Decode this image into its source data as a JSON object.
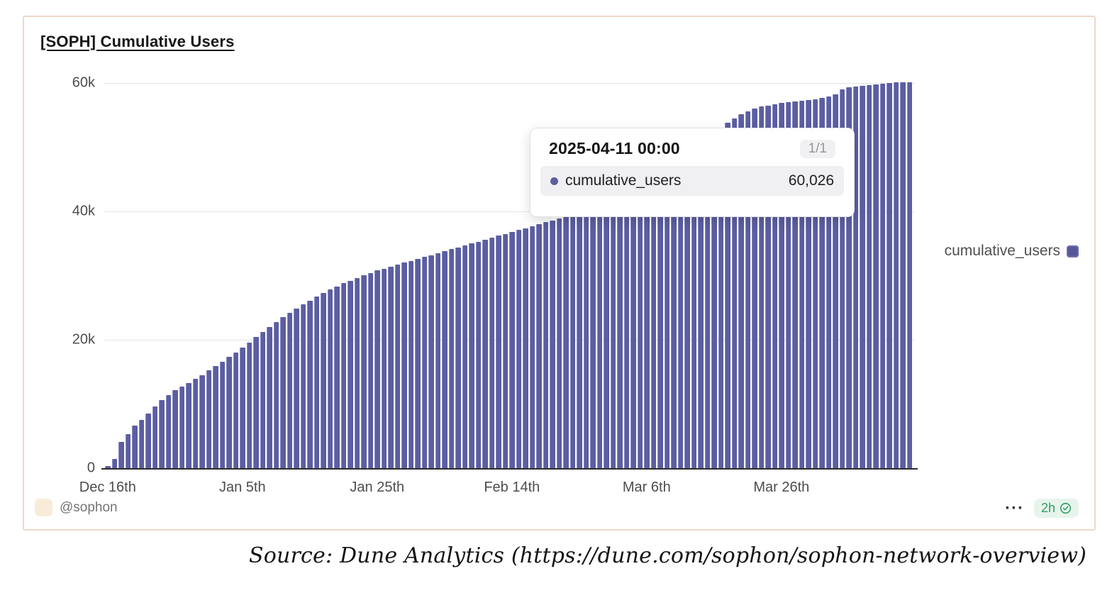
{
  "chart": {
    "title": "[SOPH] Cumulative Users",
    "legend": {
      "label": "cumulative_users"
    },
    "tooltip": {
      "date": "2025-04-11 00:00",
      "badge": "1/1",
      "series_label": "cumulative_users",
      "value": "60,026"
    },
    "footer": {
      "author": "@sophon",
      "more_label": "···",
      "updated": "2h"
    },
    "colors": {
      "bar": "#5c5ea2",
      "grid": "#e5e5e6",
      "axis_line": "#2e2e2e",
      "card_border": "#eed7c9",
      "freshness_green": "#2f9e63",
      "avatar_beige": "#f8ecd9"
    }
  },
  "chart_data": {
    "type": "bar",
    "title": "[SOPH] Cumulative Users",
    "series_name": "cumulative_users",
    "start_date": "2024-12-16",
    "end_date": "2025-04-14",
    "ylim": [
      0,
      60000
    ],
    "grid": "horizontal",
    "legend_position": "right",
    "y_ticks": [
      {
        "label": "60k",
        "value": 60000
      },
      {
        "label": "40k",
        "value": 40000
      },
      {
        "label": "20k",
        "value": 20000
      },
      {
        "label": "0",
        "value": 0
      }
    ],
    "x_ticks": [
      {
        "label": "Dec 16th",
        "day_index": 0
      },
      {
        "label": "Jan 5th",
        "day_index": 20
      },
      {
        "label": "Jan 25th",
        "day_index": 40
      },
      {
        "label": "Feb 14th",
        "day_index": 60
      },
      {
        "label": "Mar 6th",
        "day_index": 80
      },
      {
        "label": "Mar 26th",
        "day_index": 100
      }
    ],
    "highlighted_point": {
      "date": "2025-04-11 00:00",
      "value": 60026
    },
    "values": [
      300,
      1400,
      4100,
      5300,
      6600,
      7500,
      8500,
      9600,
      10600,
      11400,
      12100,
      12700,
      13300,
      13900,
      14500,
      15200,
      15900,
      16600,
      17300,
      18000,
      18800,
      19600,
      20400,
      21200,
      22000,
      22800,
      23500,
      24200,
      24900,
      25500,
      26100,
      26700,
      27300,
      27800,
      28300,
      28800,
      29200,
      29600,
      30000,
      30400,
      30800,
      31100,
      31400,
      31700,
      32000,
      32300,
      32600,
      32900,
      33200,
      33500,
      33800,
      34100,
      34400,
      34700,
      35000,
      35300,
      35600,
      35900,
      36200,
      36500,
      36800,
      37100,
      37400,
      37700,
      38000,
      38300,
      38600,
      38900,
      39200,
      39600,
      40000,
      40500,
      41000,
      41600,
      42200,
      42800,
      43400,
      44000,
      44600,
      45200,
      45800,
      46400,
      47000,
      47600,
      48200,
      48800,
      49500,
      50200,
      50900,
      51600,
      52300,
      53000,
      53800,
      54500,
      55100,
      55600,
      56000,
      56300,
      56500,
      56700,
      56900,
      57000,
      57100,
      57200,
      57350,
      57500,
      57700,
      57900,
      58200,
      59000,
      59300,
      59500,
      59600,
      59700,
      59800,
      59900,
      60026,
      60080,
      60120,
      60150
    ]
  },
  "source_note": "Source: Dune Analytics (https://dune.com/sophon/sophon-network-overview)"
}
